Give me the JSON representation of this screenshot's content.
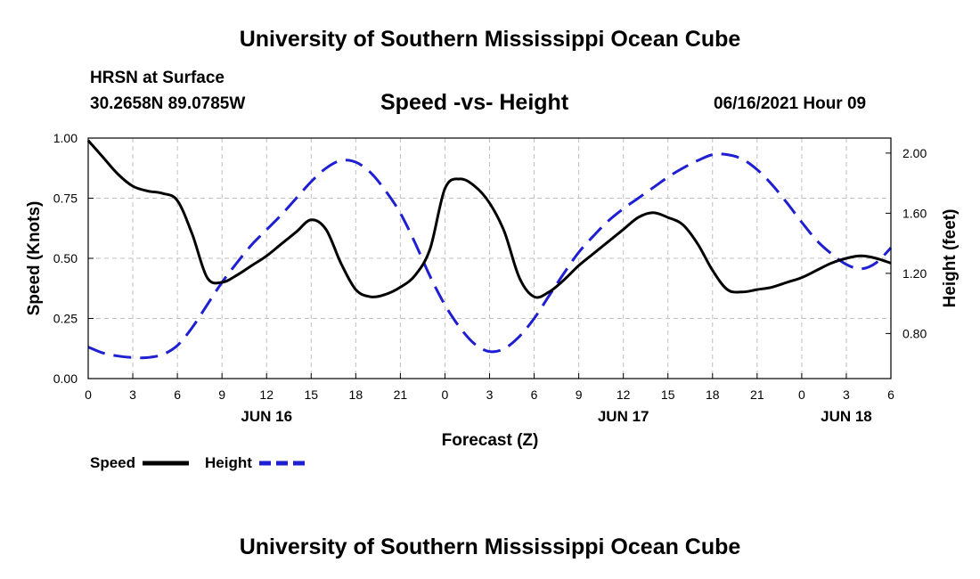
{
  "header": {
    "title": "University of Southern Mississippi Ocean Cube",
    "station": "HRSN at Surface",
    "coords": "30.2658N  89.0785W",
    "chart_title": "Speed -vs- Height",
    "datetime": "06/16/2021 Hour 09"
  },
  "footer": {
    "title": "University of Southern Mississippi Ocean Cube"
  },
  "colors": {
    "speed": "#000000",
    "height": "#1e1ed2",
    "grid": "#bfbfbf"
  },
  "chart_data": {
    "type": "line",
    "title": "Speed -vs- Height",
    "xlabel": "Forecast (Z)",
    "ylabel": "Speed (Knots)",
    "y2label": "Height (feet)",
    "xlim": [
      0,
      54
    ],
    "ylim": [
      0,
      1
    ],
    "y2lim": [
      0.5,
      2.1
    ],
    "grid": true,
    "legend_position": "bottom-left",
    "x_ticks": [
      0,
      3,
      6,
      9,
      12,
      15,
      18,
      21,
      24,
      27,
      30,
      33,
      36,
      39,
      42,
      45,
      48,
      51,
      54
    ],
    "x_tick_labels": [
      "0",
      "3",
      "6",
      "9",
      "12",
      "15",
      "18",
      "21",
      "0",
      "3",
      "6",
      "9",
      "12",
      "15",
      "18",
      "21",
      "0",
      "3",
      "6"
    ],
    "day_labels": [
      {
        "x": 12,
        "label": "JUN 16"
      },
      {
        "x": 36,
        "label": "JUN 17"
      },
      {
        "x": 51,
        "label": "JUN 18"
      }
    ],
    "y_ticks": [
      0,
      0.25,
      0.5,
      0.75,
      1
    ],
    "y_tick_labels": [
      "0.00",
      "0.25",
      "0.50",
      "0.75",
      "1.00"
    ],
    "y2_ticks": [
      0.8,
      1.2,
      1.6,
      2.0
    ],
    "y2_tick_labels": [
      "0.80",
      "1.20",
      "1.60",
      "2.00"
    ],
    "series": [
      {
        "name": "Speed",
        "axis": "left",
        "style": "solid",
        "x": [
          0,
          1,
          2,
          3,
          4,
          5,
          6,
          7,
          8,
          9,
          10,
          11,
          12,
          13,
          14,
          15,
          16,
          17,
          18,
          19,
          20,
          21,
          22,
          23,
          24,
          25,
          26,
          27,
          28,
          29,
          30,
          31,
          32,
          33,
          34,
          35,
          36,
          37,
          38,
          39,
          40,
          41,
          42,
          43,
          44,
          45,
          46,
          47,
          48,
          49,
          50,
          51,
          52,
          53,
          54
        ],
        "values": [
          0.99,
          0.92,
          0.85,
          0.8,
          0.78,
          0.77,
          0.74,
          0.6,
          0.42,
          0.4,
          0.43,
          0.47,
          0.51,
          0.56,
          0.61,
          0.66,
          0.62,
          0.48,
          0.37,
          0.34,
          0.35,
          0.38,
          0.43,
          0.54,
          0.79,
          0.83,
          0.8,
          0.73,
          0.61,
          0.42,
          0.34,
          0.36,
          0.41,
          0.47,
          0.52,
          0.57,
          0.62,
          0.67,
          0.69,
          0.67,
          0.64,
          0.56,
          0.45,
          0.37,
          0.36,
          0.37,
          0.38,
          0.4,
          0.42,
          0.45,
          0.48,
          0.5,
          0.51,
          0.5,
          0.48
        ]
      },
      {
        "name": "Height",
        "axis": "right",
        "style": "dashed",
        "x": [
          0,
          1,
          2,
          3,
          4,
          5,
          6,
          7,
          8,
          9,
          10,
          11,
          12,
          13,
          14,
          15,
          16,
          17,
          18,
          19,
          20,
          21,
          22,
          23,
          24,
          25,
          26,
          27,
          28,
          29,
          30,
          31,
          32,
          33,
          34,
          35,
          36,
          37,
          38,
          39,
          40,
          41,
          42,
          43,
          44,
          45,
          46,
          47,
          48,
          49,
          50,
          51,
          52,
          53,
          54
        ],
        "values": [
          0.71,
          0.67,
          0.65,
          0.64,
          0.64,
          0.66,
          0.72,
          0.84,
          0.99,
          1.14,
          1.27,
          1.39,
          1.49,
          1.59,
          1.7,
          1.81,
          1.9,
          1.95,
          1.94,
          1.87,
          1.75,
          1.6,
          1.4,
          1.18,
          0.99,
          0.84,
          0.73,
          0.68,
          0.7,
          0.78,
          0.9,
          1.05,
          1.2,
          1.34,
          1.45,
          1.55,
          1.63,
          1.7,
          1.77,
          1.84,
          1.9,
          1.95,
          1.99,
          1.99,
          1.96,
          1.89,
          1.79,
          1.67,
          1.54,
          1.42,
          1.33,
          1.26,
          1.23,
          1.27,
          1.37
        ]
      }
    ]
  }
}
